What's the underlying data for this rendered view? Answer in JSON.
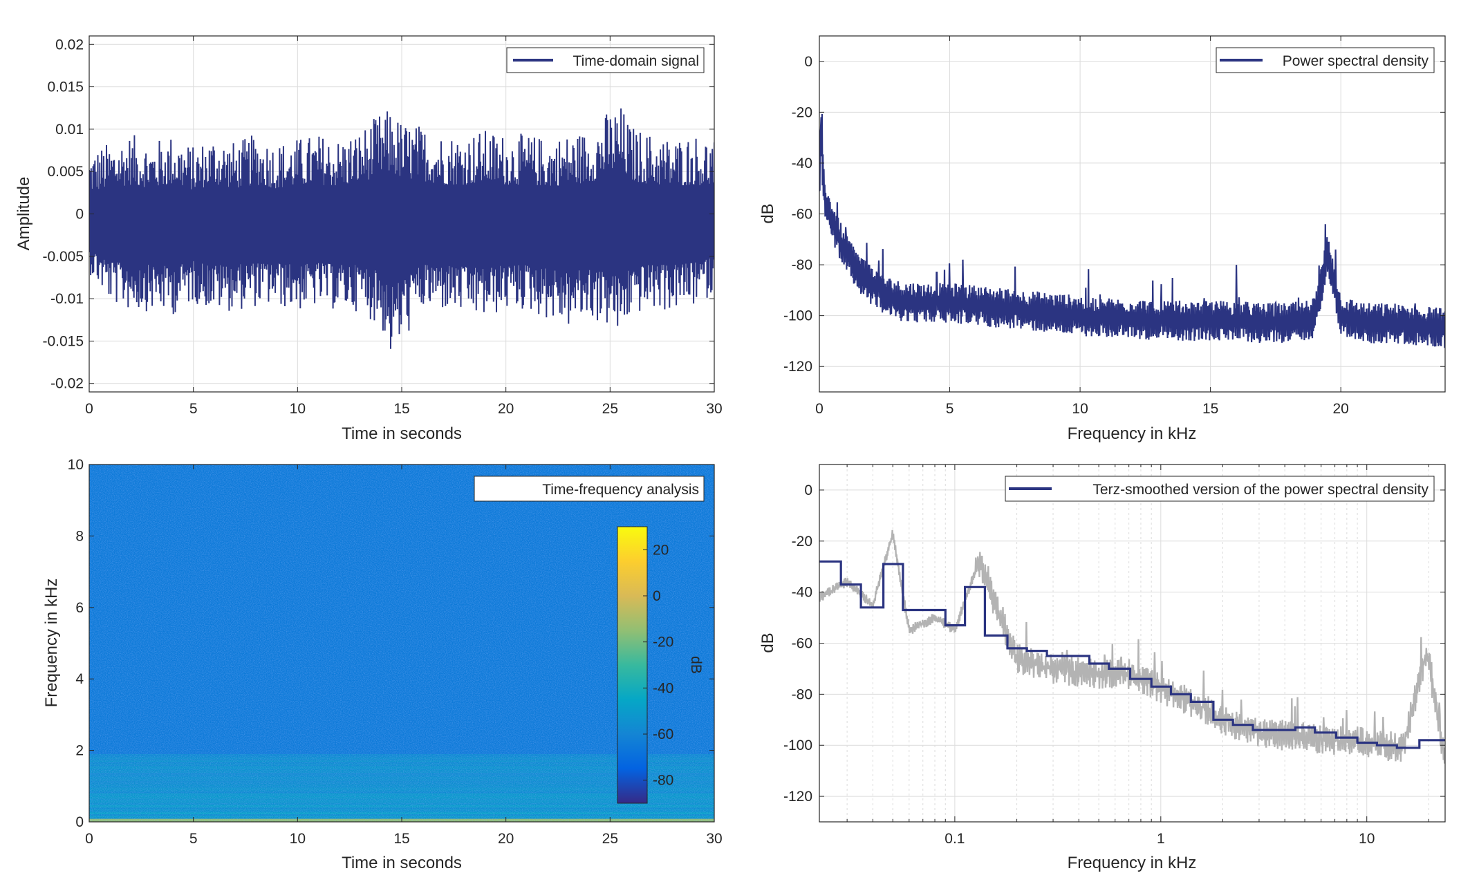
{
  "figure": {
    "panels": [
      {
        "id": "time-domain",
        "legend": "Time-domain signal",
        "xlabel": "Time in seconds",
        "ylabel": "Amplitude",
        "xticks": [
          "0",
          "5",
          "10",
          "15",
          "20",
          "25",
          "30"
        ],
        "yticks": [
          "0.02",
          "0.015",
          "0.01",
          "0.005",
          "0",
          "-0.005",
          "-0.01",
          "-0.015",
          "-0.02"
        ]
      },
      {
        "id": "psd",
        "legend": "Power spectral density",
        "xlabel": "Frequency in kHz",
        "ylabel": "dB",
        "xticks": [
          "0",
          "5",
          "10",
          "15",
          "20"
        ],
        "yticks": [
          "0",
          "-20",
          "-40",
          "-60",
          "-80",
          "-100",
          "-120"
        ]
      },
      {
        "id": "spectrogram",
        "legend": "Time-frequency analysis",
        "xlabel": "Time in seconds",
        "ylabel": "Frequency in kHz",
        "xticks": [
          "0",
          "5",
          "10",
          "15",
          "20",
          "25",
          "30"
        ],
        "yticks": [
          "10",
          "8",
          "6",
          "4",
          "2",
          "0"
        ],
        "colorbar_label": "dB",
        "colorbar_ticks": [
          "20",
          "0",
          "-20",
          "-40",
          "-60",
          "-80"
        ]
      },
      {
        "id": "terz",
        "legend": "Terz-smoothed version of the power spectral density",
        "xlabel": "Frequency in kHz",
        "ylabel": "dB",
        "xticks": [
          "0.1",
          "1",
          "10"
        ],
        "yticks": [
          "0",
          "-20",
          "-40",
          "-60",
          "-80",
          "-100",
          "-120"
        ]
      }
    ]
  },
  "chart_data": [
    {
      "type": "line",
      "title": "",
      "xlabel": "Time in seconds",
      "ylabel": "Amplitude",
      "xlim": [
        0,
        30
      ],
      "ylim": [
        -0.021,
        0.021
      ],
      "grid": true,
      "legend_position": "top-right",
      "series": [
        {
          "name": "Time-domain signal",
          "color": "#2b3481",
          "envelope_x": [
            0,
            1,
            2,
            3,
            4,
            5,
            6,
            7,
            8,
            9,
            10,
            11,
            12,
            13,
            14,
            14.5,
            15,
            16,
            17,
            18,
            19,
            20,
            21,
            22,
            23,
            24,
            25,
            25.5,
            26,
            27,
            28,
            29,
            30
          ],
          "envelope_max": [
            0.0075,
            0.0085,
            0.0095,
            0.0085,
            0.0095,
            0.008,
            0.0095,
            0.0085,
            0.0095,
            0.0085,
            0.009,
            0.0095,
            0.009,
            0.01,
            0.012,
            0.0125,
            0.011,
            0.0105,
            0.0095,
            0.0095,
            0.01,
            0.0095,
            0.0095,
            0.009,
            0.0095,
            0.01,
            0.0125,
            0.013,
            0.0105,
            0.0095,
            0.009,
            0.0095,
            0.009
          ],
          "envelope_min": [
            -0.007,
            -0.0105,
            -0.0115,
            -0.0115,
            -0.012,
            -0.0105,
            -0.0115,
            -0.0115,
            -0.011,
            -0.011,
            -0.0115,
            -0.011,
            -0.0115,
            -0.0115,
            -0.0135,
            -0.0172,
            -0.0155,
            -0.0115,
            -0.0115,
            -0.012,
            -0.0125,
            -0.0115,
            -0.0115,
            -0.0125,
            -0.0135,
            -0.0125,
            -0.0135,
            -0.015,
            -0.012,
            -0.0115,
            -0.0115,
            -0.011,
            -0.0095
          ]
        }
      ]
    },
    {
      "type": "line",
      "title": "",
      "xlabel": "Frequency in kHz",
      "ylabel": "dB",
      "xlim": [
        0,
        24
      ],
      "ylim": [
        -130,
        10
      ],
      "grid": true,
      "legend_position": "top-right",
      "series": [
        {
          "name": "Power spectral density",
          "color": "#2b3481",
          "x": [
            0,
            0.05,
            0.1,
            0.2,
            0.3,
            0.5,
            0.7,
            1,
            1.5,
            2,
            2.5,
            3,
            4,
            5,
            6,
            7,
            8,
            9,
            10,
            11,
            12,
            13,
            14,
            15,
            16,
            17,
            18,
            19,
            19.5,
            20,
            21,
            22,
            23,
            24
          ],
          "y": [
            -58,
            -18,
            -40,
            -52,
            -58,
            -63,
            -68,
            -75,
            -83,
            -88,
            -92,
            -94,
            -95,
            -95,
            -96,
            -97,
            -98,
            -99,
            -100,
            -101,
            -101,
            -102,
            -102,
            -102,
            -102,
            -103,
            -103,
            -101,
            -75,
            -100,
            -103,
            -103,
            -104,
            -105
          ],
          "peaks": [
            {
              "x": 16,
              "y": -80
            },
            {
              "x": 19.4,
              "y": -64
            },
            {
              "x": 19.8,
              "y": -74
            },
            {
              "x": 5.5,
              "y": -78
            },
            {
              "x": 4.5,
              "y": -83
            }
          ]
        }
      ]
    },
    {
      "type": "heatmap",
      "title": "",
      "xlabel": "Time in seconds",
      "ylabel": "Frequency in kHz",
      "xlim": [
        0,
        30
      ],
      "ylim": [
        0,
        10
      ],
      "colorbar": {
        "label": "dB",
        "range": [
          -90,
          30
        ],
        "colormap": "parula"
      },
      "level_by_frequency_khz": {
        "0-0.1": -15,
        "0.1-0.5": -45,
        "0.5-1.0": -52,
        "1.0-1.8": -58,
        "1.8-10": -65
      },
      "legend_position": "top-right"
    },
    {
      "type": "line",
      "title": "",
      "xlabel": "Frequency in kHz",
      "ylabel": "dB",
      "xscale": "log",
      "xlim": [
        0.022,
        24
      ],
      "ylim": [
        -130,
        10
      ],
      "grid": true,
      "legend_position": "top-right",
      "series": [
        {
          "name": "Terz-smoothed version of the power spectral density",
          "color": "#2b3481",
          "step_edges_khz": [
            0.022,
            0.028,
            0.035,
            0.045,
            0.056,
            0.071,
            0.09,
            0.112,
            0.14,
            0.18,
            0.224,
            0.28,
            0.355,
            0.45,
            0.56,
            0.71,
            0.9,
            1.12,
            1.4,
            1.8,
            2.24,
            2.8,
            3.55,
            4.5,
            5.6,
            7.1,
            9,
            11.2,
            14,
            18,
            24
          ],
          "step_values_db": [
            -28,
            -37,
            -46,
            -29,
            -47,
            -47,
            -53,
            -38,
            -57,
            -62,
            -63,
            -65,
            -65,
            -68,
            -70,
            -74,
            -77,
            -80,
            -83,
            -90,
            -92,
            -94,
            -94,
            -93,
            -95,
            -97,
            -99,
            -100,
            -101,
            -98
          ]
        },
        {
          "name": "",
          "color": "#b3b3b3",
          "x": [
            0.022,
            0.03,
            0.04,
            0.05,
            0.06,
            0.08,
            0.1,
            0.13,
            0.2,
            0.3,
            0.5,
            0.7,
            1,
            1.5,
            2,
            3,
            5,
            7,
            10,
            15,
            19.5,
            24
          ],
          "y": [
            -42,
            -36,
            -45,
            -17,
            -55,
            -50,
            -55,
            -28,
            -66,
            -70,
            -72,
            -72,
            -78,
            -84,
            -90,
            -95,
            -97,
            -98,
            -99,
            -101,
            -63,
            -106
          ]
        }
      ]
    }
  ]
}
